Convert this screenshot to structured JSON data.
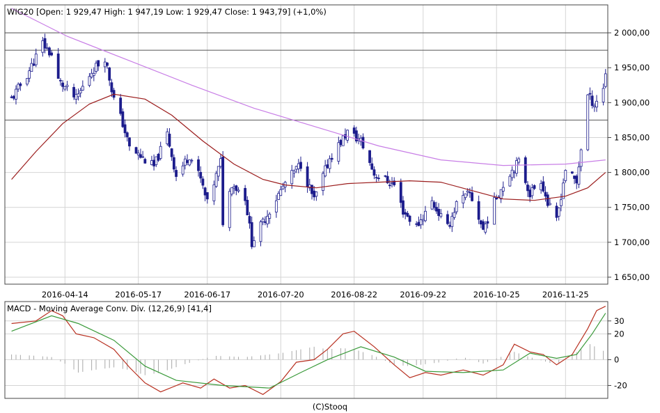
{
  "price_panel": {
    "title": "WIG20 [Open: 1 929,47  High: 1 947,19  Low: 1 929,47  Close: 1 943,79] (+1,0%)"
  },
  "macd_panel": {
    "title": "MACD - Moving Average Conv. Div. (12,26,9) [41,4]"
  },
  "footer": {
    "credit": "(C)Stooq"
  },
  "colors": {
    "candle": "#1c1c8c",
    "ma_short": "#9b1c1c",
    "ma_long": "#c87ee6",
    "macd_line": "#b83020",
    "signal_line": "#3a9a3a",
    "histogram": "#a8a8a8",
    "hline": "#555555",
    "grid": "#d4d4d4",
    "panel_border": "#444444"
  },
  "chart_data": [
    {
      "type": "candlestick",
      "title": "WIG20 [Open: 1 929,47  High: 1 947,19  Low: 1 929,47  Close: 1 943,79] (+1,0%)",
      "x_ticks": [
        "2016-04-14",
        "2016-05-17",
        "2016-06-17",
        "2016-07-20",
        "2016-08-22",
        "2016-09-22",
        "2016-10-25",
        "2016-11-25"
      ],
      "y_ticks": [
        "1 650,00",
        "1 700,00",
        "1 750,00",
        "1 800,00",
        "1 850,00",
        "1 900,00",
        "1 950,00",
        "2 000,00"
      ],
      "y_tick_values": [
        1650,
        1700,
        1750,
        1800,
        1850,
        1900,
        1950,
        2000
      ],
      "ylim": [
        1640,
        2040
      ],
      "xlim": [
        "2016-03-18",
        "2016-12-14"
      ],
      "horizontal_lines": [
        2000,
        1975,
        1875
      ],
      "grid": true,
      "series": [
        {
          "kind": "price",
          "anchors": [
            [
              "2016-03-21",
              1905
            ],
            [
              "2016-03-28",
              1940
            ],
            [
              "2016-04-04",
              1985
            ],
            [
              "2016-04-08",
              1968
            ],
            [
              "2016-04-11",
              1932
            ],
            [
              "2016-04-19",
              1905
            ],
            [
              "2016-04-26",
              1945
            ],
            [
              "2016-05-02",
              1965
            ],
            [
              "2016-05-06",
              1905
            ],
            [
              "2016-05-10",
              1870
            ],
            [
              "2016-05-13",
              1835
            ],
            [
              "2016-05-24",
              1808
            ],
            [
              "2016-05-30",
              1855
            ],
            [
              "2016-06-03",
              1795
            ],
            [
              "2016-06-09",
              1825
            ],
            [
              "2016-06-14",
              1790
            ],
            [
              "2016-06-17",
              1755
            ],
            [
              "2016-06-23",
              1815
            ],
            [
              "2016-06-24",
              1730
            ],
            [
              "2016-06-28",
              1785
            ],
            [
              "2016-07-04",
              1765
            ],
            [
              "2016-07-07",
              1700
            ],
            [
              "2016-07-14",
              1740
            ],
            [
              "2016-07-22",
              1785
            ],
            [
              "2016-07-29",
              1812
            ],
            [
              "2016-08-04",
              1760
            ],
            [
              "2016-08-11",
              1820
            ],
            [
              "2016-08-19",
              1858
            ],
            [
              "2016-08-25",
              1845
            ],
            [
              "2016-08-31",
              1798
            ],
            [
              "2016-09-09",
              1782
            ],
            [
              "2016-09-13",
              1745
            ],
            [
              "2016-09-19",
              1722
            ],
            [
              "2016-09-26",
              1758
            ],
            [
              "2016-10-03",
              1720
            ],
            [
              "2016-10-07",
              1755
            ],
            [
              "2016-10-13",
              1770
            ],
            [
              "2016-10-19",
              1718
            ],
            [
              "2016-10-25",
              1765
            ],
            [
              "2016-10-31",
              1800
            ],
            [
              "2016-11-04",
              1815
            ],
            [
              "2016-11-09",
              1770
            ],
            [
              "2016-11-14",
              1790
            ],
            [
              "2016-11-17",
              1755
            ],
            [
              "2016-11-21",
              1730
            ],
            [
              "2016-11-25",
              1805
            ],
            [
              "2016-11-30",
              1785
            ],
            [
              "2016-12-05",
              1910
            ],
            [
              "2016-12-08",
              1898
            ],
            [
              "2016-12-12",
              1920
            ],
            [
              "2016-12-13",
              1943.79
            ]
          ]
        },
        {
          "kind": "moving_average_short",
          "points": [
            [
              "2016-03-21",
              1790
            ],
            [
              "2016-04-01",
              1830
            ],
            [
              "2016-04-13",
              1870
            ],
            [
              "2016-04-25",
              1898
            ],
            [
              "2016-05-06",
              1912
            ],
            [
              "2016-05-20",
              1905
            ],
            [
              "2016-06-01",
              1882
            ],
            [
              "2016-06-15",
              1845
            ],
            [
              "2016-06-29",
              1812
            ],
            [
              "2016-07-12",
              1790
            ],
            [
              "2016-07-22",
              1782
            ],
            [
              "2016-08-05",
              1778
            ],
            [
              "2016-08-19",
              1784
            ],
            [
              "2016-09-02",
              1786
            ],
            [
              "2016-09-16",
              1788
            ],
            [
              "2016-09-30",
              1786
            ],
            [
              "2016-10-14",
              1774
            ],
            [
              "2016-10-28",
              1762
            ],
            [
              "2016-11-11",
              1760
            ],
            [
              "2016-11-25",
              1766
            ],
            [
              "2016-12-05",
              1778
            ],
            [
              "2016-12-13",
              1800
            ]
          ]
        },
        {
          "kind": "moving_average_long",
          "points": [
            [
              "2016-03-21",
              2035
            ],
            [
              "2016-04-15",
              1995
            ],
            [
              "2016-05-13",
              1960
            ],
            [
              "2016-06-10",
              1925
            ],
            [
              "2016-07-08",
              1892
            ],
            [
              "2016-08-05",
              1865
            ],
            [
              "2016-09-02",
              1838
            ],
            [
              "2016-09-30",
              1818
            ],
            [
              "2016-10-28",
              1810
            ],
            [
              "2016-11-25",
              1812
            ],
            [
              "2016-12-13",
              1818
            ]
          ]
        }
      ]
    },
    {
      "type": "line",
      "title": "MACD - Moving Average Conv. Div. (12,26,9) [41,4]",
      "y_ticks": [
        "30",
        "20",
        "0",
        "-20"
      ],
      "y_tick_values": [
        30,
        20,
        0,
        -20
      ],
      "ylim": [
        -30,
        45
      ],
      "grid": true,
      "series": [
        {
          "kind": "macd",
          "points": [
            [
              "2016-03-21",
              28
            ],
            [
              "2016-04-01",
              30
            ],
            [
              "2016-04-08",
              38
            ],
            [
              "2016-04-13",
              34
            ],
            [
              "2016-04-19",
              20
            ],
            [
              "2016-04-27",
              17
            ],
            [
              "2016-05-06",
              8
            ],
            [
              "2016-05-13",
              -6
            ],
            [
              "2016-05-20",
              -18
            ],
            [
              "2016-05-27",
              -25
            ],
            [
              "2016-06-06",
              -18
            ],
            [
              "2016-06-14",
              -22
            ],
            [
              "2016-06-20",
              -15
            ],
            [
              "2016-06-27",
              -22
            ],
            [
              "2016-07-04",
              -20
            ],
            [
              "2016-07-12",
              -27
            ],
            [
              "2016-07-20",
              -17
            ],
            [
              "2016-07-27",
              -2
            ],
            [
              "2016-08-04",
              0
            ],
            [
              "2016-08-10",
              8
            ],
            [
              "2016-08-17",
              20
            ],
            [
              "2016-08-22",
              22
            ],
            [
              "2016-08-31",
              10
            ],
            [
              "2016-09-09",
              -4
            ],
            [
              "2016-09-16",
              -14
            ],
            [
              "2016-09-23",
              -10
            ],
            [
              "2016-09-30",
              -12
            ],
            [
              "2016-10-10",
              -8
            ],
            [
              "2016-10-19",
              -12
            ],
            [
              "2016-10-28",
              -4
            ],
            [
              "2016-11-02",
              12
            ],
            [
              "2016-11-09",
              6
            ],
            [
              "2016-11-15",
              4
            ],
            [
              "2016-11-21",
              -4
            ],
            [
              "2016-11-28",
              4
            ],
            [
              "2016-12-05",
              24
            ],
            [
              "2016-12-09",
              38
            ],
            [
              "2016-12-13",
              41.4
            ]
          ]
        },
        {
          "kind": "signal",
          "points": [
            [
              "2016-03-21",
              22
            ],
            [
              "2016-04-08",
              34
            ],
            [
              "2016-04-20",
              28
            ],
            [
              "2016-05-06",
              15
            ],
            [
              "2016-05-20",
              -5
            ],
            [
              "2016-06-03",
              -16
            ],
            [
              "2016-06-24",
              -20
            ],
            [
              "2016-07-15",
              -22
            ],
            [
              "2016-07-29",
              -10
            ],
            [
              "2016-08-10",
              0
            ],
            [
              "2016-08-25",
              10
            ],
            [
              "2016-09-09",
              2
            ],
            [
              "2016-09-23",
              -9
            ],
            [
              "2016-10-10",
              -10
            ],
            [
              "2016-10-28",
              -8
            ],
            [
              "2016-11-09",
              5
            ],
            [
              "2016-11-21",
              1
            ],
            [
              "2016-11-30",
              4
            ],
            [
              "2016-12-07",
              20
            ],
            [
              "2016-12-13",
              36
            ]
          ]
        },
        {
          "kind": "histogram",
          "points": [
            [
              "2016-03-21",
              4
            ],
            [
              "2016-04-01",
              3
            ],
            [
              "2016-04-08",
              2
            ],
            [
              "2016-04-15",
              -4
            ],
            [
              "2016-04-20",
              -10
            ],
            [
              "2016-04-27",
              -8
            ],
            [
              "2016-05-06",
              -6
            ],
            [
              "2016-05-13",
              -8
            ],
            [
              "2016-05-20",
              -12
            ],
            [
              "2016-05-27",
              -10
            ],
            [
              "2016-06-06",
              -4
            ],
            [
              "2016-06-20",
              3
            ],
            [
              "2016-07-04",
              2
            ],
            [
              "2016-07-20",
              5
            ],
            [
              "2016-08-04",
              10
            ],
            [
              "2016-08-10",
              8
            ],
            [
              "2016-08-17",
              9
            ],
            [
              "2016-08-24",
              7
            ],
            [
              "2016-08-31",
              3
            ],
            [
              "2016-09-09",
              -4
            ],
            [
              "2016-09-16",
              -5
            ],
            [
              "2016-09-30",
              -2
            ],
            [
              "2016-10-10",
              2
            ],
            [
              "2016-10-19",
              -3
            ],
            [
              "2016-11-02",
              6
            ],
            [
              "2016-11-09",
              2
            ],
            [
              "2016-11-21",
              -4
            ],
            [
              "2016-12-02",
              8
            ],
            [
              "2016-12-06",
              12
            ],
            [
              "2016-12-13",
              6
            ]
          ]
        }
      ]
    }
  ]
}
